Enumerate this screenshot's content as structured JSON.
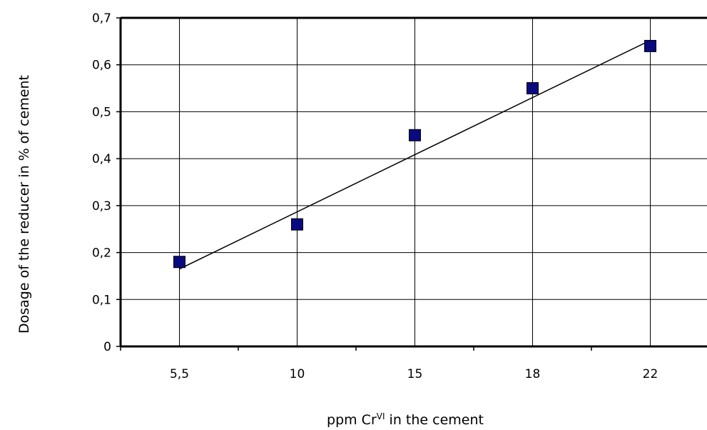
{
  "chart_data": {
    "type": "scatter",
    "title": "",
    "xlabel": {
      "base": "ppm Cr",
      "superscript": "VI",
      "suffix": " in the cement"
    },
    "ylabel": "Dosage of the reducer in % of cement",
    "categories": [
      "5,5",
      "10",
      "15",
      "18",
      "22"
    ],
    "ylim": [
      0,
      0.7
    ],
    "yticks": [
      0,
      0.1,
      0.2,
      0.3,
      0.4,
      0.5,
      0.6,
      0.7
    ],
    "ytick_labels": [
      "0",
      "0,1",
      "0,2",
      "0,3",
      "0,4",
      "0,5",
      "0,6",
      "0,7"
    ],
    "series": [
      {
        "values": [
          0.18,
          0.26,
          0.45,
          0.55,
          0.64
        ],
        "marker": "square",
        "color": "#0a0a80"
      }
    ],
    "trendline": {
      "type": "linear",
      "start": 0.165,
      "end": 0.652,
      "color": "#000000"
    },
    "grid": true,
    "legend": "none"
  }
}
